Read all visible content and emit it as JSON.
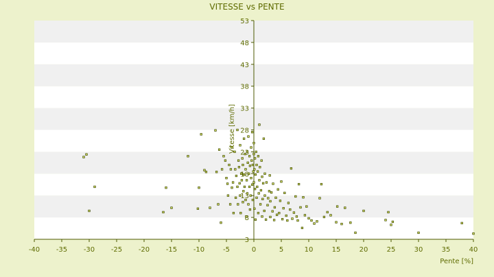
{
  "chart_data": {
    "type": "scatter",
    "title": "VITESSE vs PENTE",
    "xlabel": "Pente [%]",
    "ylabel": "Vitesse [km/h]",
    "xlim": [
      -40,
      40
    ],
    "ylim": [
      3,
      53
    ],
    "x_ticks": [
      -40,
      -35,
      -30,
      -25,
      -20,
      -15,
      -10,
      -5,
      0,
      5,
      10,
      15,
      20,
      25,
      30,
      35,
      40
    ],
    "y_ticks": [
      3,
      8,
      13,
      18,
      23,
      28,
      33,
      38,
      43,
      48,
      53
    ],
    "grid": "horizontal alternating bands",
    "legend": "none",
    "colors": {
      "background": "#edf2cc",
      "plot_band_light": "#ffffff",
      "plot_band_dark": "#f0f0f0",
      "axis": "#4d5a00",
      "text": "#5e6b00",
      "marker_fill": "#d2dc64",
      "marker_stroke": "#3f4a00"
    },
    "points": [
      [
        -31,
        21.8
      ],
      [
        -30.5,
        22.4
      ],
      [
        -30,
        9.5
      ],
      [
        -29,
        15
      ],
      [
        -16,
        14.8
      ],
      [
        -16.5,
        9.2
      ],
      [
        -15,
        10.2
      ],
      [
        -12,
        22
      ],
      [
        -10,
        14.8
      ],
      [
        -10.2,
        10
      ],
      [
        -9.6,
        27
      ],
      [
        -9,
        18.8
      ],
      [
        -8.7,
        18.4
      ],
      [
        -8,
        10.2
      ],
      [
        -7,
        27.9
      ],
      [
        -6.8,
        18.4
      ],
      [
        -6.5,
        11
      ],
      [
        -6.3,
        23.5
      ],
      [
        -6,
        6.8
      ],
      [
        -5.8,
        19
      ],
      [
        -5.5,
        22
      ],
      [
        -5.2,
        21
      ],
      [
        -5,
        17
      ],
      [
        -4.8,
        15.7
      ],
      [
        -4.7,
        13
      ],
      [
        -4.5,
        20
      ],
      [
        -4.3,
        11
      ],
      [
        -4.2,
        19
      ],
      [
        -4,
        14.8
      ],
      [
        -4,
        24
      ],
      [
        -3.8,
        16
      ],
      [
        -3.7,
        9
      ],
      [
        -3.5,
        23
      ],
      [
        -3.4,
        19
      ],
      [
        -3.3,
        12.5
      ],
      [
        -3.2,
        17.5
      ],
      [
        -3,
        15
      ],
      [
        -3,
        28
      ],
      [
        -2.9,
        11
      ],
      [
        -2.8,
        21
      ],
      [
        -2.7,
        19.5
      ],
      [
        -2.6,
        15.8
      ],
      [
        -2.5,
        13
      ],
      [
        -2.5,
        24.5
      ],
      [
        -2.4,
        9
      ],
      [
        -2.3,
        18
      ],
      [
        -2.2,
        16.5
      ],
      [
        -2.1,
        21.5
      ],
      [
        -2,
        11.5
      ],
      [
        -2,
        20
      ],
      [
        -1.9,
        14
      ],
      [
        -1.8,
        26
      ],
      [
        -1.8,
        17.8
      ],
      [
        -1.7,
        15
      ],
      [
        -1.6,
        22.5
      ],
      [
        -1.5,
        12
      ],
      [
        -1.5,
        19
      ],
      [
        -1.4,
        8.2
      ],
      [
        -1.3,
        16.5
      ],
      [
        -1.2,
        23
      ],
      [
        -1.2,
        13.5
      ],
      [
        -1.1,
        20.5
      ],
      [
        -1,
        11
      ],
      [
        -1,
        26.5
      ],
      [
        -0.9,
        18
      ],
      [
        -0.8,
        15
      ],
      [
        -0.8,
        22
      ],
      [
        -0.7,
        9.8
      ],
      [
        -0.7,
        19.8
      ],
      [
        -0.6,
        13
      ],
      [
        -0.5,
        24
      ],
      [
        -0.5,
        17
      ],
      [
        -0.4,
        21
      ],
      [
        -0.3,
        15.5
      ],
      [
        -0.3,
        27.5
      ],
      [
        -0.2,
        12
      ],
      [
        -0.2,
        20
      ],
      [
        -0.1,
        18.5
      ],
      [
        0,
        25
      ],
      [
        0,
        16
      ],
      [
        0,
        22.5
      ],
      [
        0.1,
        10
      ],
      [
        0.1,
        19
      ],
      [
        0.2,
        14.5
      ],
      [
        0.2,
        21.5
      ],
      [
        0.3,
        7.5
      ],
      [
        0.3,
        17.8
      ],
      [
        0.4,
        23
      ],
      [
        0.5,
        12.5
      ],
      [
        0.5,
        20
      ],
      [
        0.6,
        15
      ],
      [
        0.7,
        18.5
      ],
      [
        0.8,
        9
      ],
      [
        0.8,
        22
      ],
      [
        0.9,
        13.5
      ],
      [
        1,
        16.5
      ],
      [
        1,
        29.2
      ],
      [
        1.1,
        19.5
      ],
      [
        1.2,
        11
      ],
      [
        1.3,
        14.2
      ],
      [
        1.4,
        21
      ],
      [
        1.5,
        8.2
      ],
      [
        1.5,
        17.3
      ],
      [
        1.6,
        12.2
      ],
      [
        1.7,
        15.8
      ],
      [
        1.8,
        26
      ],
      [
        1.9,
        9.5
      ],
      [
        2,
        18
      ],
      [
        2,
        13
      ],
      [
        2.2,
        7.5
      ],
      [
        2.3,
        16
      ],
      [
        2.5,
        10.8
      ],
      [
        2.6,
        12.4
      ],
      [
        2.8,
        14
      ],
      [
        2.9,
        17.6
      ],
      [
        3,
        8.1
      ],
      [
        3,
        11.7
      ],
      [
        3.2,
        13.7
      ],
      [
        3.4,
        9.4
      ],
      [
        3.5,
        15.7
      ],
      [
        3.7,
        7.4
      ],
      [
        3.8,
        10.3
      ],
      [
        4,
        12.5
      ],
      [
        4.2,
        8.6
      ],
      [
        4.4,
        14.4
      ],
      [
        4.6,
        9
      ],
      [
        4.8,
        11.8
      ],
      [
        5,
        16.2
      ],
      [
        5.2,
        7.6
      ],
      [
        5.4,
        10.1
      ],
      [
        5.6,
        13.6
      ],
      [
        5.9,
        8.4
      ],
      [
        6.1,
        7.3
      ],
      [
        6.3,
        11.3
      ],
      [
        6.6,
        9.8
      ],
      [
        6.8,
        19.2
      ],
      [
        7,
        7.7
      ],
      [
        7.3,
        9.1
      ],
      [
        7.6,
        12.8
      ],
      [
        7.8,
        8.2
      ],
      [
        8,
        7.3
      ],
      [
        8.2,
        15.6
      ],
      [
        8.5,
        10.3
      ],
      [
        8.8,
        5.6
      ],
      [
        9,
        12.6
      ],
      [
        9.3,
        8.5
      ],
      [
        9.6,
        10.5
      ],
      [
        10,
        7.8
      ],
      [
        10.5,
        7.3
      ],
      [
        11,
        6.6
      ],
      [
        11.5,
        7.1
      ],
      [
        12,
        12.4
      ],
      [
        12.3,
        15.6
      ],
      [
        12.8,
        8.1
      ],
      [
        13.4,
        9.2
      ],
      [
        14,
        8.5
      ],
      [
        15,
        6.9
      ],
      [
        15.2,
        10.5
      ],
      [
        16,
        6.5
      ],
      [
        16.6,
        10.2
      ],
      [
        17.6,
        6.8
      ],
      [
        18.5,
        4.5
      ],
      [
        20,
        9.5
      ],
      [
        24,
        7.4
      ],
      [
        24.5,
        9.2
      ],
      [
        25,
        6.3
      ],
      [
        25.3,
        7
      ],
      [
        30,
        4.5
      ],
      [
        37.9,
        6.7
      ],
      [
        40,
        4.3
      ]
    ]
  }
}
